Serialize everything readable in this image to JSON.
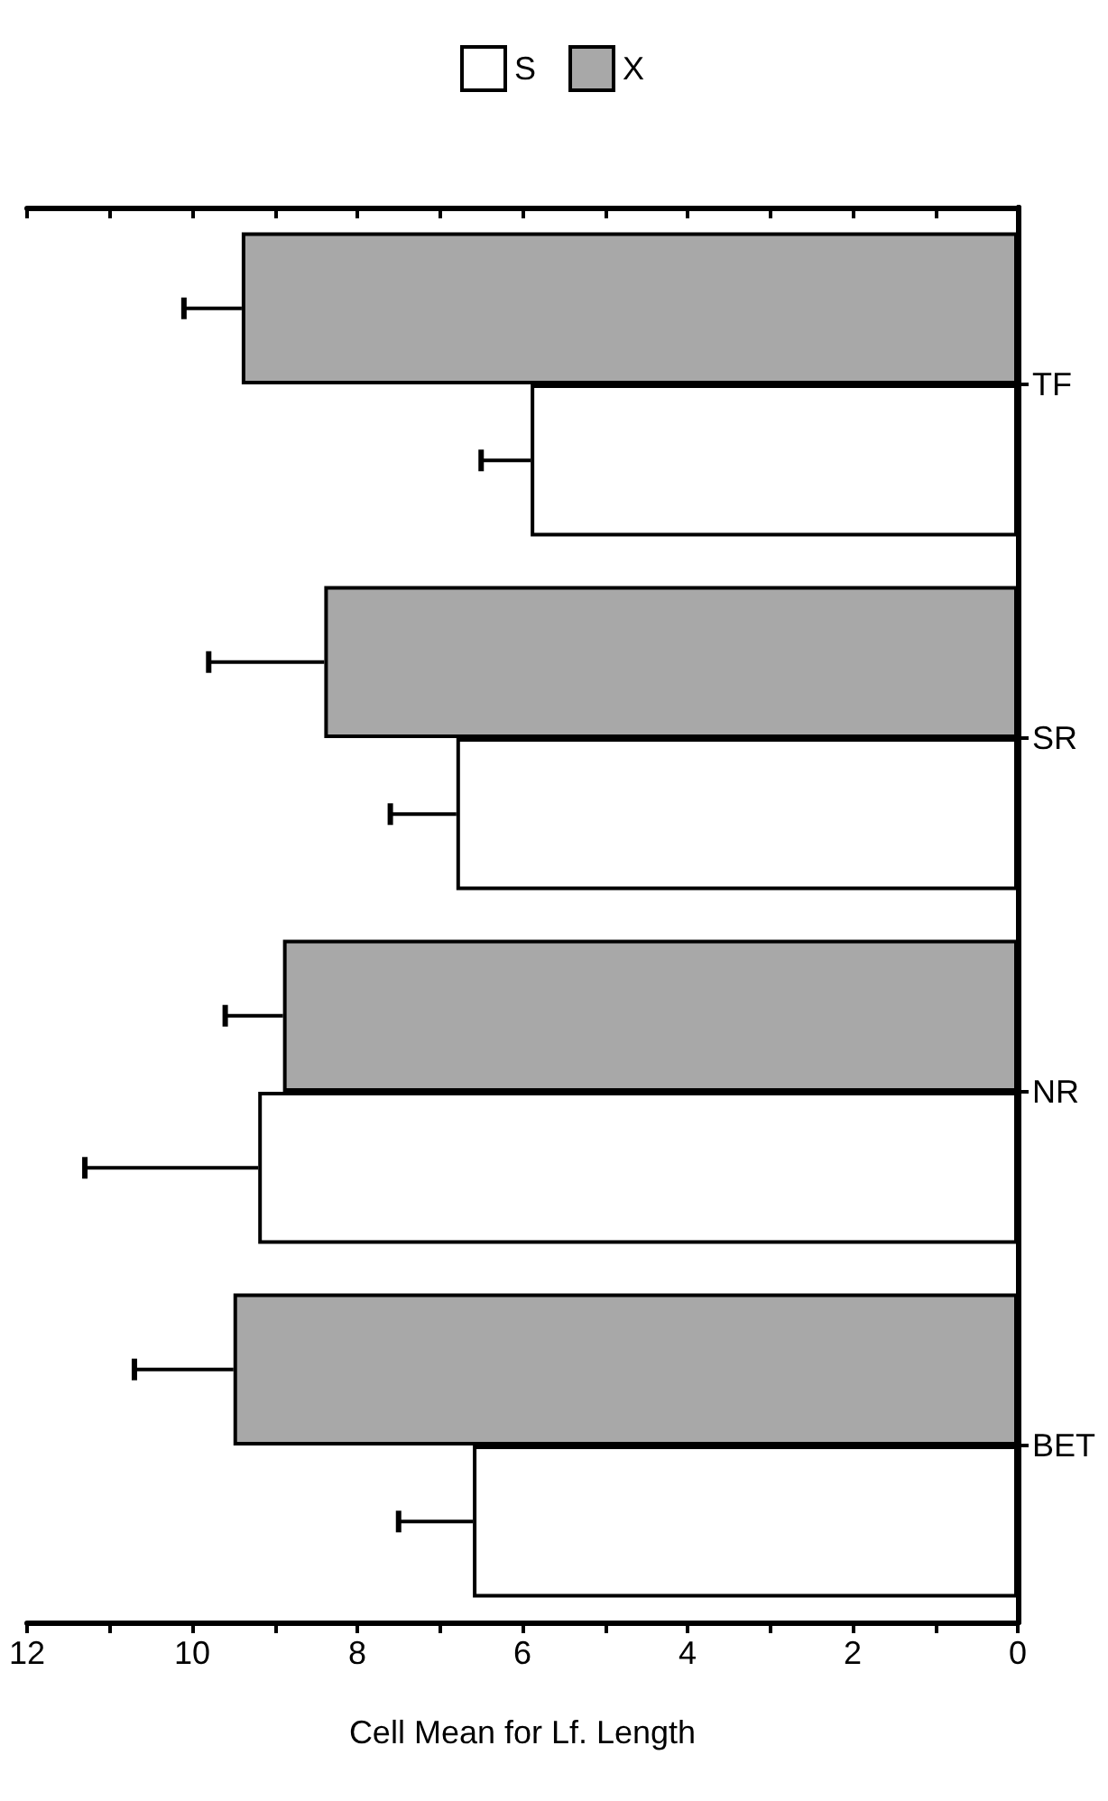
{
  "chart_data": {
    "type": "bar",
    "orientation": "horizontal",
    "xlabel": "Cell Mean for Lf. Length",
    "categories": [
      "TF",
      "SR",
      "NR",
      "BET"
    ],
    "series": [
      {
        "name": "S",
        "color": "#ffffff",
        "values": [
          5.9,
          6.8,
          9.2,
          6.6
        ],
        "errors": [
          [
            5.9,
            6.5
          ],
          [
            6.8,
            7.6
          ],
          [
            9.2,
            11.3
          ],
          [
            6.6,
            7.5
          ]
        ]
      },
      {
        "name": "X",
        "color": "#a8a8a8",
        "values": [
          9.4,
          8.4,
          8.9,
          9.5
        ],
        "errors": [
          [
            9.4,
            10.1
          ],
          [
            8.4,
            9.8
          ],
          [
            8.9,
            9.6
          ],
          [
            9.5,
            10.7
          ]
        ]
      }
    ],
    "xlim": [
      12,
      0
    ],
    "xticks": [
      12,
      {
        "value": 11,
        "label": null
      },
      10,
      {
        "value": 9,
        "label": null
      },
      8,
      {
        "value": 7,
        "label": null
      },
      6,
      {
        "value": 5,
        "label": null
      },
      4,
      {
        "value": 3,
        "label": null
      },
      2,
      {
        "value": 1,
        "label": null
      },
      0
    ],
    "grid": false,
    "legend": "top right"
  }
}
